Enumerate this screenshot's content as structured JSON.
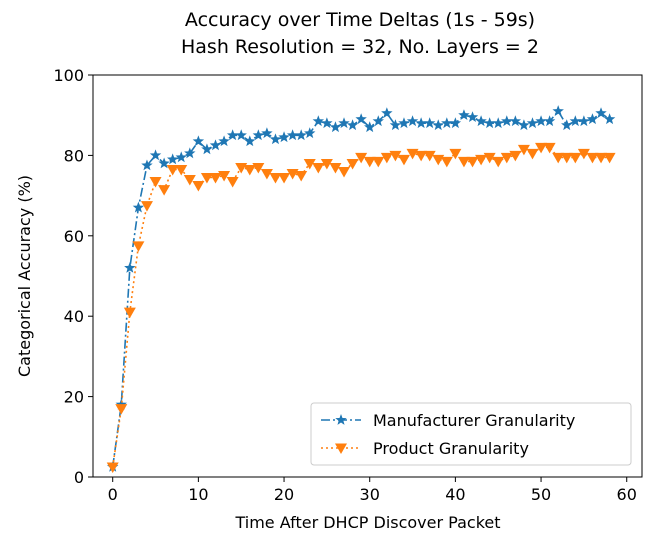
{
  "chart_data": {
    "type": "line",
    "title": "Accuracy over Time Deltas (1s - 59s)",
    "subtitle": "Hash Resolution = 32, No. Layers = 2",
    "x_label": "Time After DHCP Discover Packet",
    "y_label": "Categorical Accuracy (%)",
    "x": [
      0,
      1,
      2,
      3,
      4,
      5,
      6,
      7,
      8,
      9,
      10,
      11,
      12,
      13,
      14,
      15,
      16,
      17,
      18,
      19,
      20,
      21,
      22,
      23,
      24,
      25,
      26,
      27,
      28,
      29,
      30,
      31,
      32,
      33,
      34,
      35,
      36,
      37,
      38,
      39,
      40,
      41,
      42,
      43,
      44,
      45,
      46,
      47,
      48,
      49,
      50,
      51,
      52,
      53,
      54,
      55,
      56,
      57,
      58
    ],
    "series": [
      {
        "name": "Manufacturer Granularity",
        "color": "#1f77b4",
        "marker": "star",
        "linestyle": "dashdot",
        "values": [
          2.5,
          18,
          52,
          67,
          77.5,
          80,
          78,
          79,
          79.5,
          80.5,
          83.5,
          81.5,
          82.5,
          83.5,
          85,
          85,
          83.5,
          85,
          85.5,
          84,
          84.5,
          85,
          85,
          85.5,
          88.5,
          88,
          87,
          88,
          87.5,
          89,
          87,
          88.5,
          90.5,
          87.5,
          88,
          88.5,
          88,
          88,
          87.5,
          88,
          88,
          90,
          89.5,
          88.5,
          88,
          88,
          88.5,
          88.5,
          87.5,
          88,
          88.5,
          88.5,
          91,
          87.5,
          88.5,
          88.5,
          89,
          90.5,
          89
        ]
      },
      {
        "name": "Product Granularity",
        "color": "#ff7f0e",
        "marker": "triangle_down",
        "linestyle": "dotted",
        "values": [
          2.5,
          17,
          41,
          57.5,
          67.5,
          73.5,
          71.5,
          76.5,
          76.5,
          74,
          72.5,
          74.5,
          74.5,
          75,
          73.5,
          77,
          76.5,
          77,
          75.5,
          74.5,
          74.5,
          75.5,
          75,
          78,
          77,
          78,
          77,
          76,
          78,
          79.5,
          78.5,
          78.5,
          79.5,
          80,
          79,
          80.5,
          80,
          80,
          79,
          78.5,
          80.5,
          78.5,
          78.5,
          79,
          79.5,
          78.5,
          79.5,
          80,
          81.5,
          80.5,
          82,
          82,
          79.5,
          79.5,
          79.5,
          80.5,
          79.5,
          79.5,
          79.5
        ]
      }
    ],
    "xlim": [
      -2.3,
      61.9
    ],
    "xticks": [
      0,
      10,
      20,
      30,
      40,
      50,
      60
    ],
    "ylim": [
      0,
      100
    ],
    "yticks": [
      0,
      20,
      40,
      60,
      80,
      100
    ],
    "grid": false,
    "legend": "lower right"
  }
}
